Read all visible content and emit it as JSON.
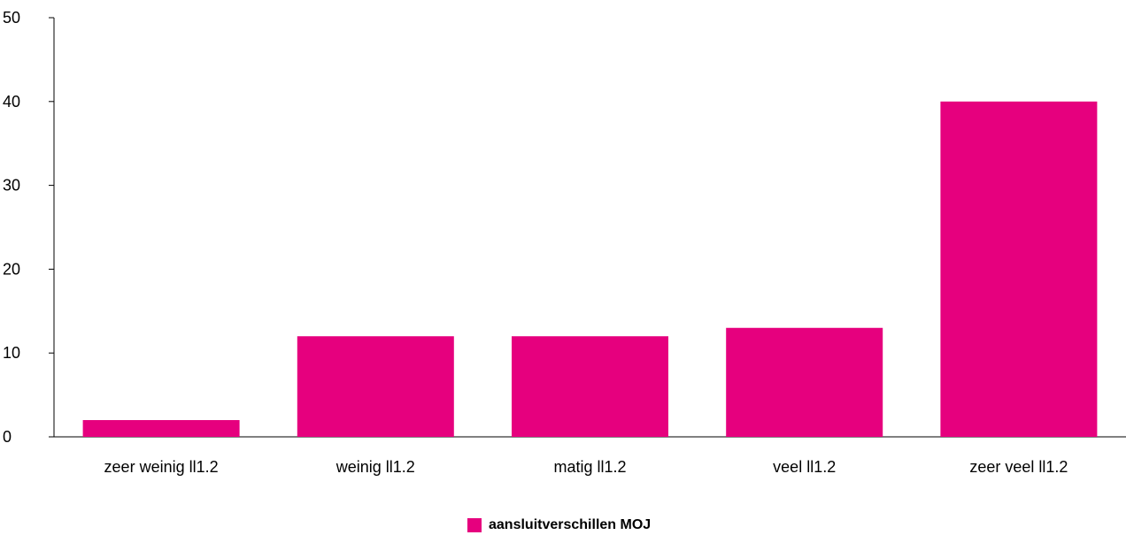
{
  "chart_data": {
    "type": "bar",
    "title": "",
    "xlabel": "",
    "ylabel": "",
    "categories": [
      "zeer weinig ll1.2",
      "weinig ll1.2",
      "matig ll1.2",
      "veel ll1.2",
      "zeer veel ll1.2"
    ],
    "series": [
      {
        "name": "aansluitverschillen MOJ",
        "values": [
          2,
          12,
          12,
          13,
          40
        ],
        "color": "#e6007e"
      }
    ],
    "ylim": [
      0,
      50
    ],
    "yticks": [
      "0",
      "10",
      "20",
      "30",
      "40",
      "50"
    ],
    "grid": false,
    "legend_position": "bottom"
  }
}
